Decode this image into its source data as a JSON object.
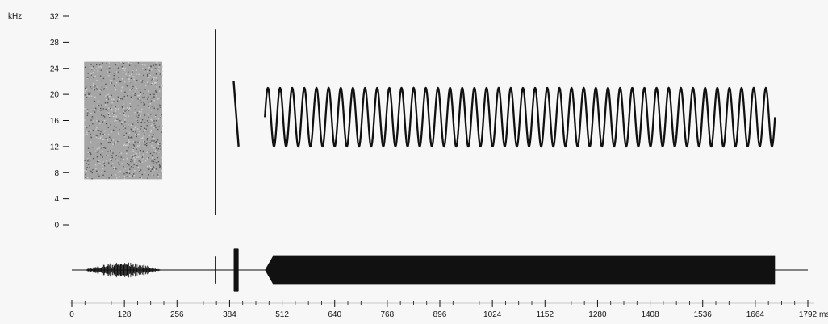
{
  "chart_data": [
    {
      "type": "spectrogram",
      "yunit": "kHz",
      "yticks": [
        0,
        4,
        8,
        12,
        16,
        20,
        24,
        28,
        32
      ],
      "ylim": [
        0,
        32
      ],
      "xlim": [
        0,
        1792
      ],
      "grid": false,
      "noise_burst": {
        "t_start": 30,
        "t_end": 220,
        "f_low": 7,
        "f_high": 25
      },
      "click": {
        "t": 350,
        "f_low": 0,
        "f_high": 30
      },
      "downsweep": {
        "t_start": 394,
        "t_end": 406,
        "f_start": 22,
        "f_end": 12
      },
      "fm_tone": {
        "t_start": 470,
        "t_end": 1712,
        "f_center": 16.5,
        "f_depth": 4.5,
        "cycles": 42
      }
    },
    {
      "type": "waveform",
      "segments": [
        {
          "kind": "noise",
          "t_start": 30,
          "t_end": 220,
          "amplitude": 0.35
        },
        {
          "kind": "click",
          "t_start": 350,
          "t_end": 351,
          "amplitude": 0.6
        },
        {
          "kind": "pulse",
          "t_start": 394,
          "t_end": 406,
          "amplitude": 0.95
        },
        {
          "kind": "tone",
          "t_start": 470,
          "t_end": 1712,
          "amplitude": 0.62
        }
      ],
      "xunit": "ms",
      "xticks": [
        0,
        128,
        256,
        384,
        512,
        640,
        768,
        896,
        1024,
        1152,
        1280,
        1408,
        1536,
        1664,
        1792
      ],
      "xlim": [
        0,
        1792
      ]
    }
  ],
  "colors": {
    "ink": "#111111",
    "noise": "#8a8a8a",
    "background": "#f7f7f7"
  }
}
